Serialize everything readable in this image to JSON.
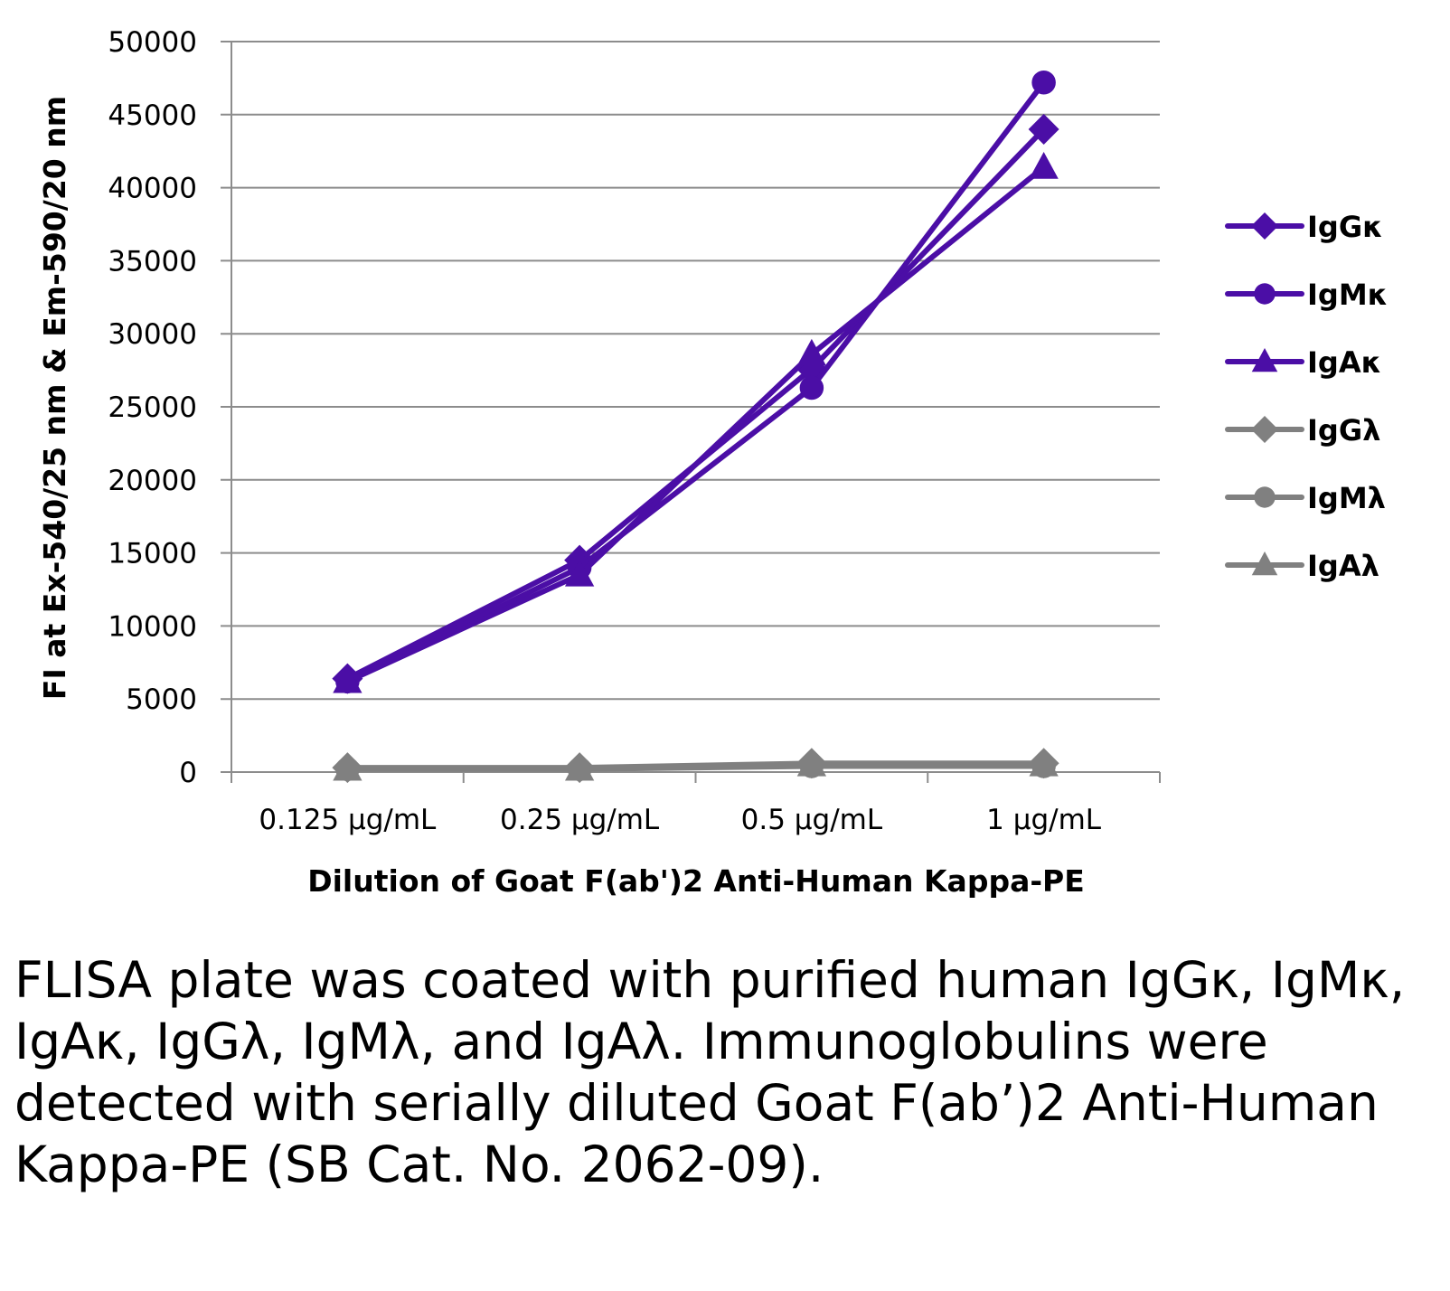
{
  "chart_data": {
    "type": "line",
    "title": "",
    "xlabel": "Dilution of Goat F(ab')2 Anti-Human Kappa-PE",
    "ylabel": "FI at Ex-540/25 nm & Em-590/20 nm",
    "categories": [
      "0.125 µg/mL",
      "0.25 µg/mL",
      "0.5 µg/mL",
      "1 µg/mL"
    ],
    "ylim": [
      0,
      50000
    ],
    "yticks": [
      0,
      5000,
      10000,
      15000,
      20000,
      25000,
      30000,
      35000,
      40000,
      45000,
      50000
    ],
    "grid": true,
    "legend": "right",
    "series": [
      {
        "name": "IgGκ",
        "marker": "diamond",
        "color": "#4b0ea6",
        "values": [
          6400,
          14500,
          27600,
          44000
        ]
      },
      {
        "name": "IgMκ",
        "marker": "circle",
        "color": "#4b0ea6",
        "values": [
          6200,
          14000,
          26300,
          47200
        ]
      },
      {
        "name": "IgAκ",
        "marker": "triangle",
        "color": "#4b0ea6",
        "values": [
          6200,
          13500,
          28600,
          41400
        ]
      },
      {
        "name": "IgGλ",
        "marker": "diamond",
        "color": "#808080",
        "values": [
          300,
          300,
          600,
          600
        ]
      },
      {
        "name": "IgMλ",
        "marker": "circle",
        "color": "#808080",
        "values": [
          200,
          200,
          400,
          400
        ]
      },
      {
        "name": "IgAλ",
        "marker": "triangle",
        "color": "#808080",
        "values": [
          200,
          200,
          500,
          500
        ]
      }
    ]
  },
  "caption": "FLISA plate was coated with purified human IgGκ, IgMκ, IgAκ, IgGλ, IgMλ, and IgAλ. Immunoglobulins were detected with serially diluted Goat F(ab’)2 Anti-Human Kappa-PE (SB Cat. No. 2062-09)."
}
